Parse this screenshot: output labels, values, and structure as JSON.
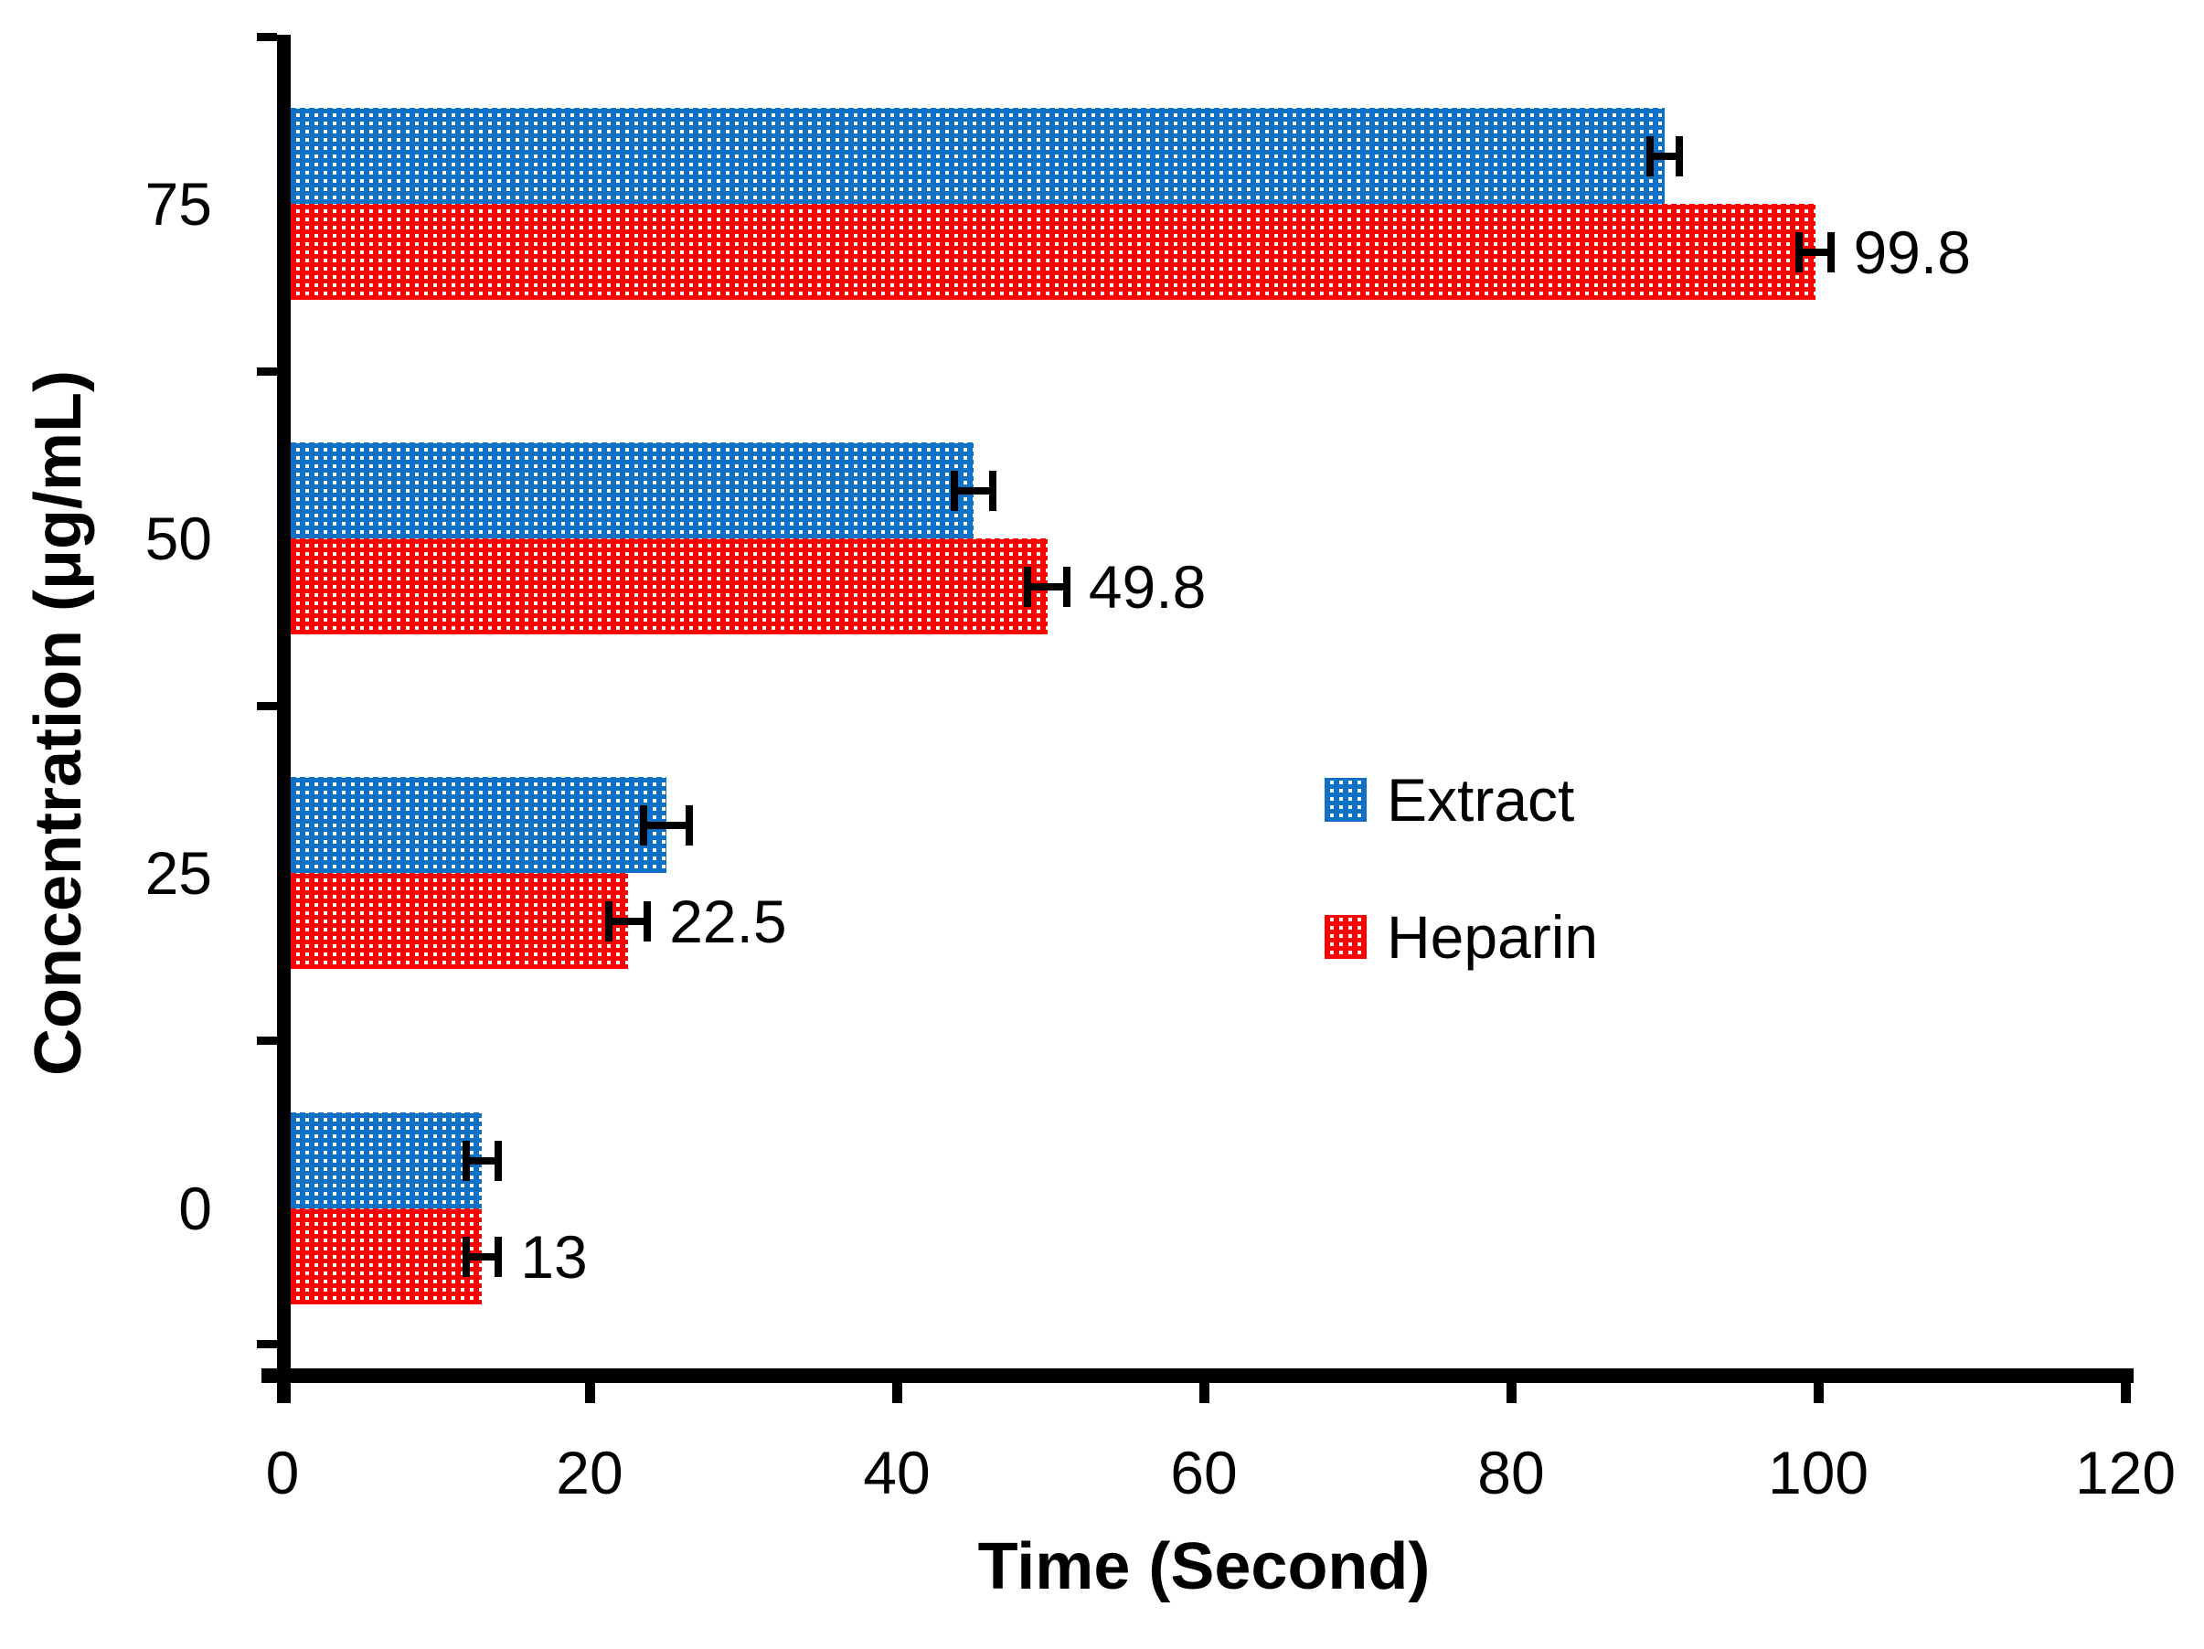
{
  "chart_data": {
    "type": "bar",
    "orientation": "horizontal",
    "title": "",
    "xlabel": "Time (Second)",
    "ylabel": "Concentration (μg/mL)",
    "categories": [
      "75",
      "50",
      "25",
      "0"
    ],
    "series": [
      {
        "name": "Extract",
        "color": "#0e71c6",
        "values": [
          90,
          45,
          25,
          13
        ],
        "errors": [
          1.2,
          1.5,
          1.7,
          1.3
        ],
        "data_labels": [
          "",
          "",
          "",
          ""
        ]
      },
      {
        "name": "Heparin",
        "color": "#fe0000",
        "values": [
          99.8,
          49.8,
          22.5,
          13
        ],
        "errors": [
          1.3,
          1.5,
          1.5,
          1.3
        ],
        "data_labels": [
          "99.8",
          "49.8",
          "22.5",
          "13"
        ]
      }
    ],
    "x_ticks": [
      0,
      20,
      40,
      60,
      80,
      100,
      120
    ],
    "x_tick_labels": [
      "0",
      "20",
      "40",
      "60",
      "80",
      "100",
      "120"
    ],
    "xlim": [
      0,
      120
    ],
    "grid": false,
    "background": "#ffffff",
    "axis_color": "#000000",
    "pattern": "white-dot-grid",
    "legend": {
      "position": "middle-right",
      "entries": [
        "Extract",
        "Heparin"
      ]
    }
  }
}
